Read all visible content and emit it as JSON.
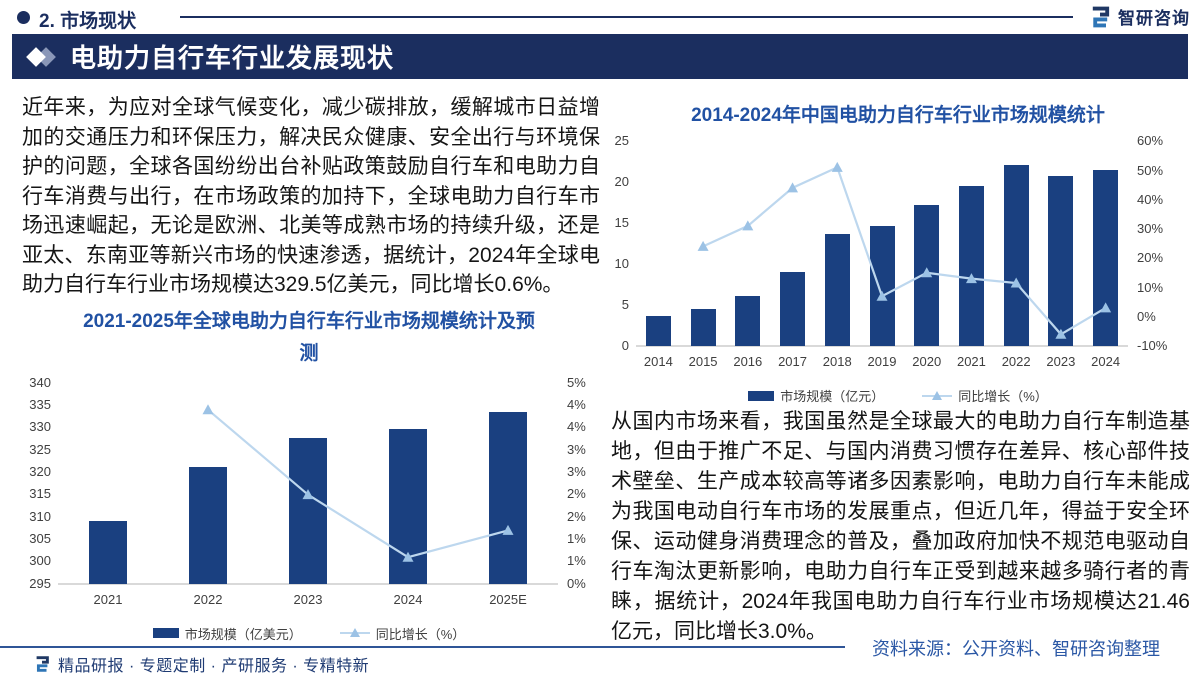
{
  "header": {
    "section_title": "2. 市场现状",
    "logo_text": "智研咨询"
  },
  "banner": {
    "title": "电助力自行车行业发展现状"
  },
  "left_panel": {
    "paragraph": "近年来，为应对全球气候变化，减少碳排放，缓解城市日益增加的交通压力和环保压力，解决民众健康、安全出行与环境保护的问题，全球各国纷纷出台补贴政策鼓励自行车和电助力自行车消费与出行，在市场政策的加持下，全球电助力自行车市场迅速崛起，无论是欧洲、北美等成熟市场的持续升级，还是亚太、东南亚等新兴市场的快速渗透，据统计，2024年全球电助力自行车行业市场规模达329.5亿美元，同比增长0.6%。"
  },
  "right_panel": {
    "paragraph": "从国内市场来看，我国虽然是全球最大的电助力自行车制造基地，但由于推广不足、与国内消费习惯存在差异、核心部件技术壁垒、生产成本较高等诸多因素影响，电助力自行车未能成为我国电动自行车市场的发展重点，但近几年，得益于安全环保、运动健身消费理念的普及，叠加政府加快不规范电驱动自行车淘汰更新影响，电助力自行车正受到越来越多骑行者的青睐，据统计，2024年我国电助力自行车行业市场规模达21.46亿元，同比增长3.0%。",
    "source": "资料来源：公开资料、智研咨询整理"
  },
  "footer": {
    "tagline": "精品研报 · 专题定制 · 产研服务 · 专精特新"
  },
  "colors": {
    "banner_bg": "#1b2e5f",
    "chart_title_blue": "#2151a3",
    "bar": "#1a4080",
    "line": "#bdd7ee",
    "marker": "#9cc2e5",
    "source_blue": "#2a57a5"
  },
  "chart_data": [
    {
      "type": "bar",
      "title": "2021-2025年全球电助力自行车行业市场规模统计及预测",
      "categories": [
        "2021",
        "2022",
        "2023",
        "2024",
        "2025E"
      ],
      "series": [
        {
          "name": "市场规模（亿美元）",
          "type": "bar",
          "axis": "left",
          "values": [
            309,
            321,
            327.5,
            329.5,
            333.5
          ]
        },
        {
          "name": "同比增长（%）",
          "type": "line",
          "axis": "right",
          "values": [
            null,
            3.9,
            2.0,
            0.6,
            1.2
          ]
        }
      ],
      "left_axis": {
        "min": 295,
        "max": 340,
        "ticks": [
          "340",
          "335",
          "330",
          "325",
          "320",
          "315",
          "310",
          "305",
          "300",
          "295"
        ]
      },
      "right_axis": {
        "min": 0,
        "max": 4.5,
        "ticks": [
          "5%",
          "4%",
          "4%",
          "3%",
          "3%",
          "2%",
          "2%",
          "1%",
          "1%",
          "0%"
        ]
      },
      "grid": false,
      "legend_position": "bottom"
    },
    {
      "type": "bar",
      "title": "2014-2024年中国电助力自行车行业市场规模统计",
      "categories": [
        "2014",
        "2015",
        "2016",
        "2017",
        "2018",
        "2019",
        "2020",
        "2021",
        "2022",
        "2023",
        "2024"
      ],
      "series": [
        {
          "name": "市场规模（亿元）",
          "type": "bar",
          "axis": "left",
          "values": [
            3.7,
            4.5,
            6.1,
            9.0,
            13.7,
            14.7,
            17.2,
            19.6,
            22.1,
            20.8,
            21.46
          ]
        },
        {
          "name": "同比增长（%）",
          "type": "line",
          "axis": "right",
          "values": [
            null,
            24,
            31,
            44,
            51,
            7,
            15,
            13,
            11.5,
            -6,
            3
          ]
        }
      ],
      "left_axis": {
        "min": 0,
        "max": 25,
        "ticks": [
          "25",
          "20",
          "15",
          "10",
          "5",
          "0"
        ]
      },
      "right_axis": {
        "min": -10,
        "max": 60,
        "ticks": [
          "60%",
          "50%",
          "40%",
          "30%",
          "20%",
          "10%",
          "0%",
          "-10%"
        ]
      },
      "grid": false,
      "legend_position": "bottom"
    }
  ]
}
